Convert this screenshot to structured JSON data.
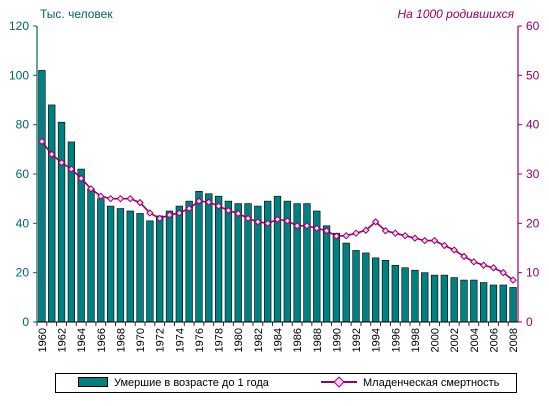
{
  "chart_data": {
    "type": "bar",
    "title": "",
    "left_unit_label": "Тыс. человек",
    "right_unit_label": "На 1000 родившихся",
    "y_left_range": [
      0,
      120
    ],
    "y_left_ticks": [
      "0",
      "20",
      "40",
      "60",
      "80",
      "100",
      "120"
    ],
    "y_right_range": [
      0,
      60
    ],
    "y_right_ticks": [
      "0",
      "10",
      "20",
      "30",
      "40",
      "50",
      "60"
    ],
    "x_tick_labels": [
      "1960",
      "1962",
      "1964",
      "1966",
      "1968",
      "1970",
      "1972",
      "1974",
      "1976",
      "1978",
      "1980",
      "1982",
      "1984",
      "1986",
      "1988",
      "1990",
      "1992",
      "1994",
      "1996",
      "1998",
      "2000",
      "2002",
      "2004",
      "2006",
      "2008"
    ],
    "grid": false,
    "legend_position": "bottom",
    "colors": {
      "bar": "#008080",
      "line": "#990066",
      "marker_fill": "#ffccff",
      "left_axis": "#006666",
      "right_axis": "#990066"
    },
    "categories": [
      1960,
      1961,
      1962,
      1963,
      1964,
      1965,
      1966,
      1967,
      1968,
      1969,
      1970,
      1971,
      1972,
      1973,
      1974,
      1975,
      1976,
      1977,
      1978,
      1979,
      1980,
      1981,
      1982,
      1983,
      1984,
      1985,
      1986,
      1987,
      1988,
      1989,
      1990,
      1991,
      1992,
      1993,
      1994,
      1995,
      1996,
      1997,
      1998,
      1999,
      2000,
      2001,
      2002,
      2003,
      2004,
      2005,
      2006,
      2007,
      2008
    ],
    "series": [
      {
        "name": "Умершие в возрасте до 1 года",
        "kind": "bar",
        "axis": "left",
        "values": [
          102,
          88,
          81,
          73,
          62,
          54,
          50,
          47,
          46,
          45,
          44,
          41,
          43,
          45,
          47,
          49,
          53,
          52,
          51,
          49,
          48,
          48,
          47,
          49,
          51,
          49,
          48,
          48,
          45,
          39,
          36,
          32,
          29,
          28,
          26,
          25,
          23,
          22,
          21,
          20,
          19,
          19,
          18,
          17,
          17,
          16,
          15,
          15,
          14
        ]
      },
      {
        "name": "Младенческая смертность",
        "kind": "line",
        "axis": "right",
        "values": [
          36.6,
          34,
          32.3,
          31,
          29.1,
          27,
          25.5,
          25,
          25,
          25,
          24.2,
          22.1,
          21,
          21.7,
          22.1,
          23,
          24.5,
          24.3,
          23.5,
          22.6,
          22,
          21,
          20.3,
          20,
          20.8,
          20.5,
          19.5,
          19.5,
          19,
          18.5,
          17.4,
          17.5,
          18,
          18.6,
          20.3,
          18.5,
          18,
          17.5,
          17,
          16.5,
          16.5,
          15.5,
          14.6,
          13.3,
          12.2,
          11.5,
          11,
          10,
          8.5
        ]
      }
    ]
  }
}
